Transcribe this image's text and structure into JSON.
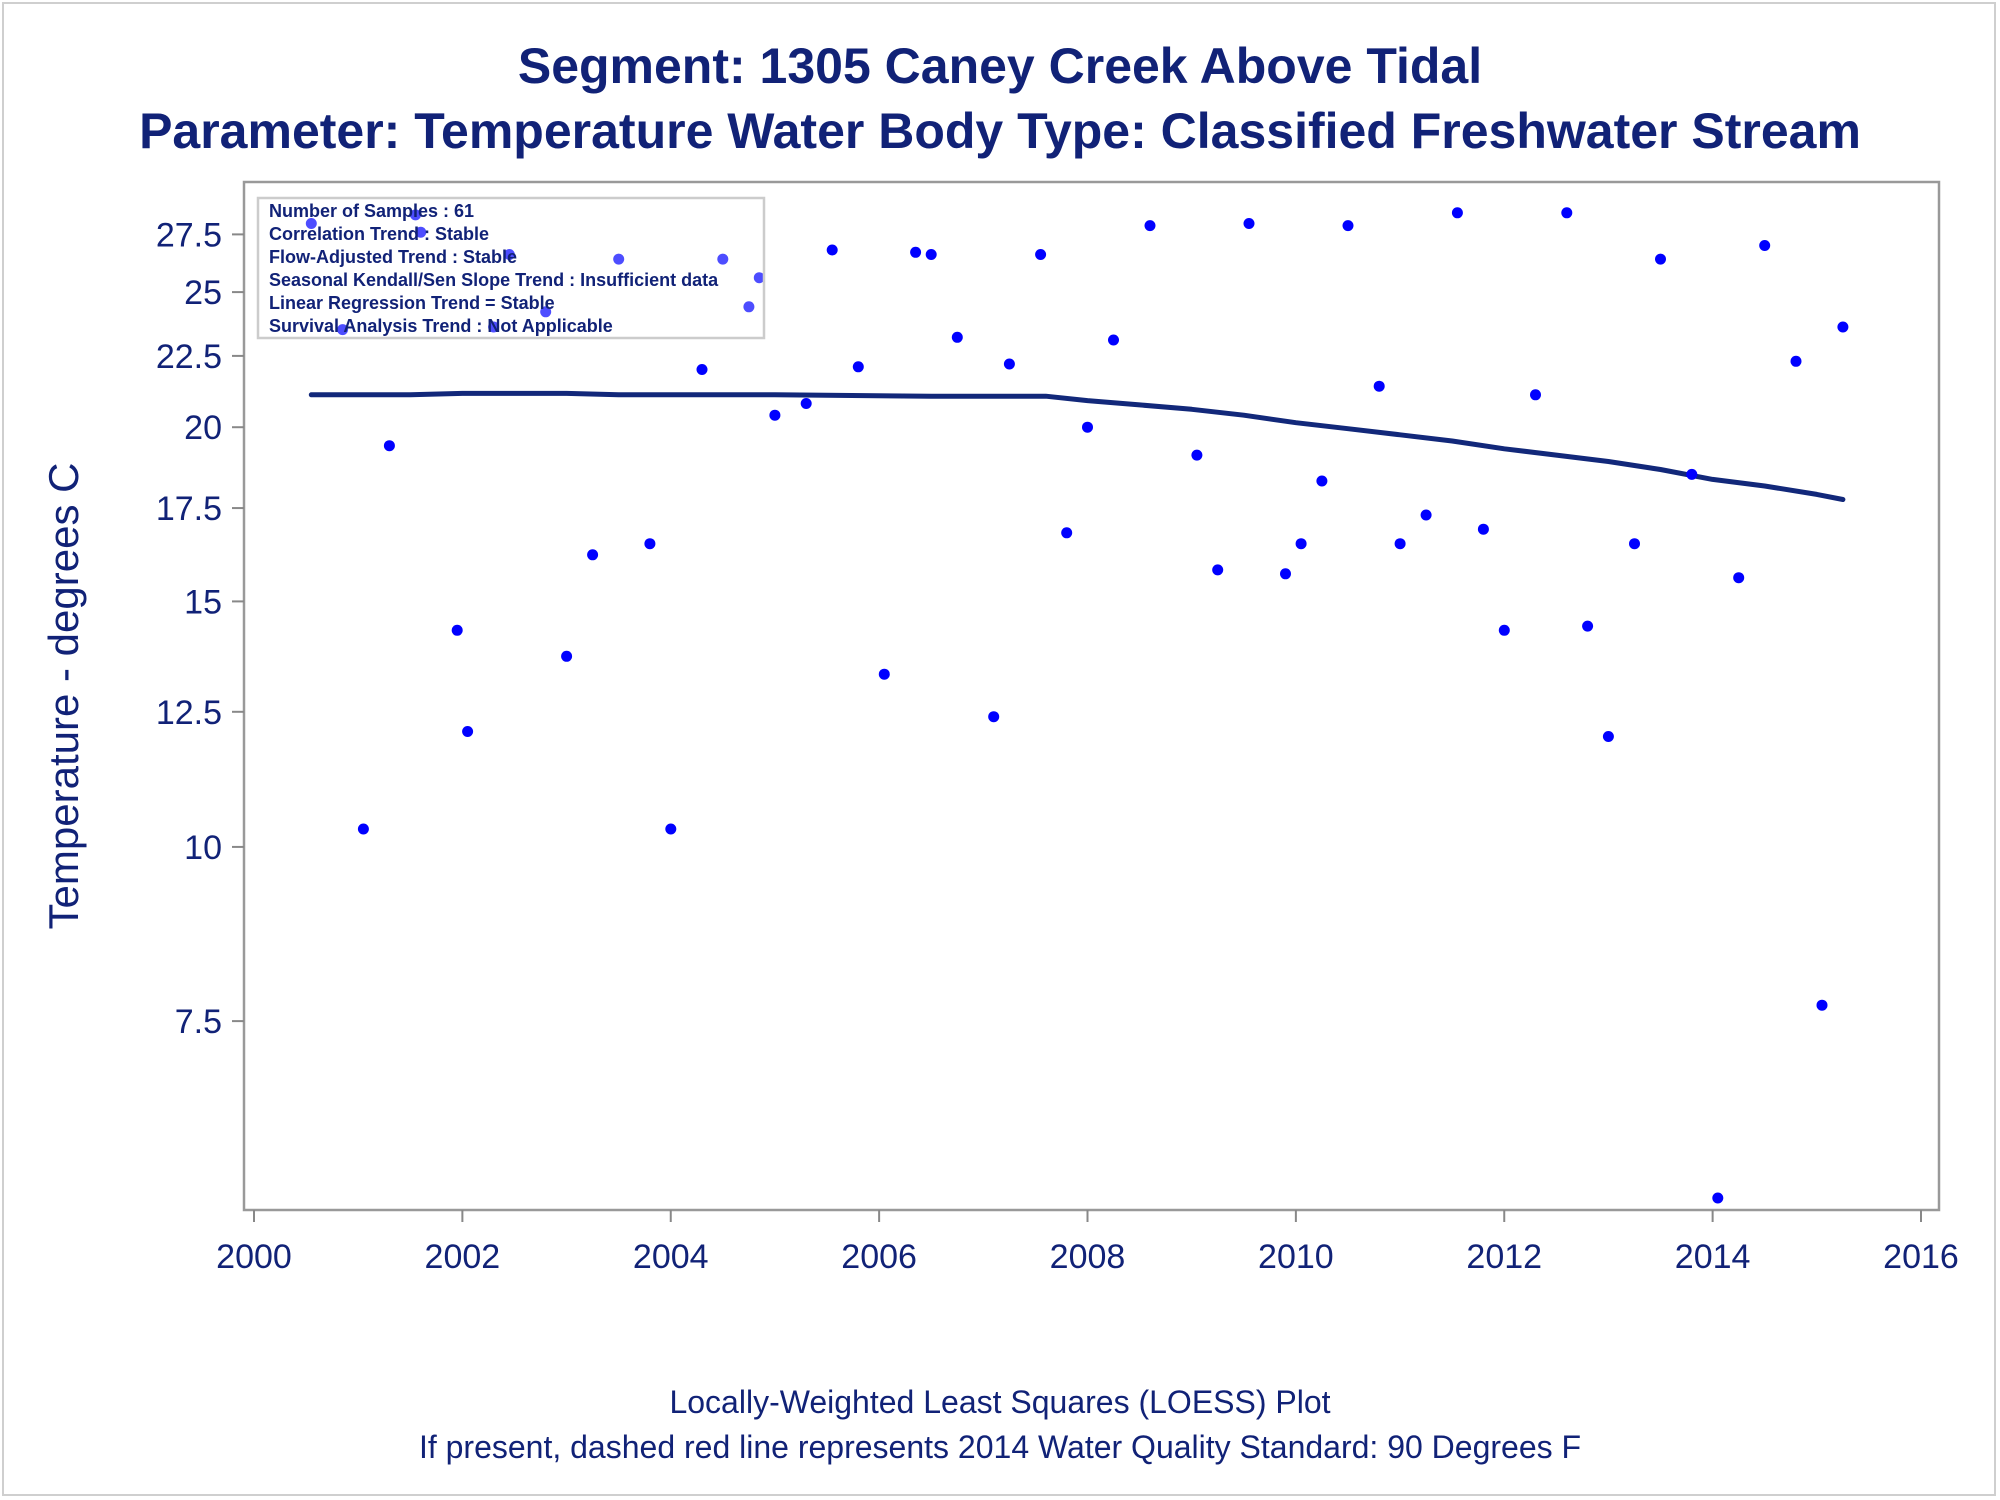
{
  "chart_data": {
    "type": "scatter",
    "title": "Segment: 1305  Caney Creek Above Tidal",
    "subtitle": "Parameter: Temperature   Water Body Type: Classified Freshwater Stream",
    "xlabel": "",
    "ylabel": "Temperature - degrees C",
    "y_scale": "log",
    "xlim": [
      2000,
      2016
    ],
    "ylim": [
      5.6,
      29.3
    ],
    "x_ticks": [
      "2000",
      "2002",
      "2004",
      "2006",
      "2008",
      "2010",
      "2012",
      "2014",
      "2016"
    ],
    "y_ticks": [
      "7.5",
      "10",
      "12.5",
      "15",
      "17.5",
      "20",
      "22.5",
      "25",
      "27.5"
    ],
    "grid": false,
    "legend": "none",
    "colors": {
      "points": "#0000ff",
      "loess": "#12287a",
      "text": "#112277",
      "frame": "#999999"
    },
    "inset_text": [
      "Number of Samples : 61",
      "Correlation Trend : Stable",
      "Flow-Adjusted Trend : Stable",
      "Seasonal Kendall/Sen Slope Trend : Insufficient data",
      "Linear Regression Trend = Stable",
      "Survival Analysis Trend : Not Applicable"
    ],
    "footnotes": [
      "Locally-Weighted Least Squares (LOESS) Plot",
      "If present, dashed red line represents 2014 Water Quality Standard: 90   Degrees F"
    ],
    "series": [
      {
        "kind": "scatter",
        "points": [
          [
            2000.55,
            28.0
          ],
          [
            2000.85,
            23.5
          ],
          [
            2001.05,
            10.3
          ],
          [
            2001.3,
            19.4
          ],
          [
            2001.55,
            28.4
          ],
          [
            2001.6,
            27.6
          ],
          [
            2001.95,
            14.3
          ],
          [
            2002.05,
            12.1
          ],
          [
            2002.3,
            23.6
          ],
          [
            2002.45,
            26.6
          ],
          [
            2002.8,
            24.2
          ],
          [
            2003.0,
            13.7
          ],
          [
            2003.25,
            16.2
          ],
          [
            2003.5,
            26.4
          ],
          [
            2003.8,
            16.5
          ],
          [
            2004.0,
            10.3
          ],
          [
            2004.3,
            22.0
          ],
          [
            2004.5,
            26.4
          ],
          [
            2004.75,
            24.4
          ],
          [
            2004.85,
            25.6
          ],
          [
            2005.0,
            20.4
          ],
          [
            2005.3,
            20.8
          ],
          [
            2005.55,
            26.8
          ],
          [
            2005.8,
            22.1
          ],
          [
            2006.05,
            13.3
          ],
          [
            2006.35,
            26.7
          ],
          [
            2006.5,
            26.6
          ],
          [
            2006.75,
            23.2
          ],
          [
            2007.1,
            12.4
          ],
          [
            2007.25,
            22.2
          ],
          [
            2007.55,
            26.6
          ],
          [
            2007.8,
            16.8
          ],
          [
            2008.0,
            20.0
          ],
          [
            2008.25,
            23.1
          ],
          [
            2008.6,
            27.9
          ],
          [
            2009.05,
            19.1
          ],
          [
            2009.25,
            15.8
          ],
          [
            2009.55,
            28.0
          ],
          [
            2009.9,
            15.7
          ],
          [
            2010.05,
            16.5
          ],
          [
            2010.25,
            18.3
          ],
          [
            2010.5,
            27.9
          ],
          [
            2010.8,
            21.4
          ],
          [
            2011.0,
            16.5
          ],
          [
            2011.25,
            17.3
          ],
          [
            2011.55,
            28.5
          ],
          [
            2011.8,
            16.9
          ],
          [
            2012.0,
            14.3
          ],
          [
            2012.3,
            21.1
          ],
          [
            2012.6,
            28.5
          ],
          [
            2012.8,
            14.4
          ],
          [
            2013.0,
            12.0
          ],
          [
            2013.25,
            16.5
          ],
          [
            2013.5,
            26.4
          ],
          [
            2013.8,
            18.5
          ],
          [
            2014.05,
            5.6
          ],
          [
            2014.25,
            15.6
          ],
          [
            2014.5,
            27.0
          ],
          [
            2014.8,
            22.3
          ],
          [
            2015.05,
            7.7
          ],
          [
            2015.25,
            23.6
          ]
        ]
      },
      {
        "kind": "line",
        "points": [
          [
            2000.55,
            21.1
          ],
          [
            2001.5,
            21.1
          ],
          [
            2002.0,
            21.15
          ],
          [
            2003.0,
            21.15
          ],
          [
            2003.5,
            21.1
          ],
          [
            2005.0,
            21.1
          ],
          [
            2006.5,
            21.05
          ],
          [
            2007.6,
            21.05
          ],
          [
            2008.0,
            20.9
          ],
          [
            2008.5,
            20.75
          ],
          [
            2009.0,
            20.6
          ],
          [
            2009.5,
            20.4
          ],
          [
            2010.0,
            20.15
          ],
          [
            2010.5,
            19.95
          ],
          [
            2011.0,
            19.75
          ],
          [
            2011.5,
            19.55
          ],
          [
            2012.0,
            19.3
          ],
          [
            2012.5,
            19.1
          ],
          [
            2013.0,
            18.9
          ],
          [
            2013.5,
            18.65
          ],
          [
            2014.0,
            18.35
          ],
          [
            2014.5,
            18.15
          ],
          [
            2015.0,
            17.9
          ],
          [
            2015.25,
            17.75
          ]
        ]
      }
    ]
  }
}
